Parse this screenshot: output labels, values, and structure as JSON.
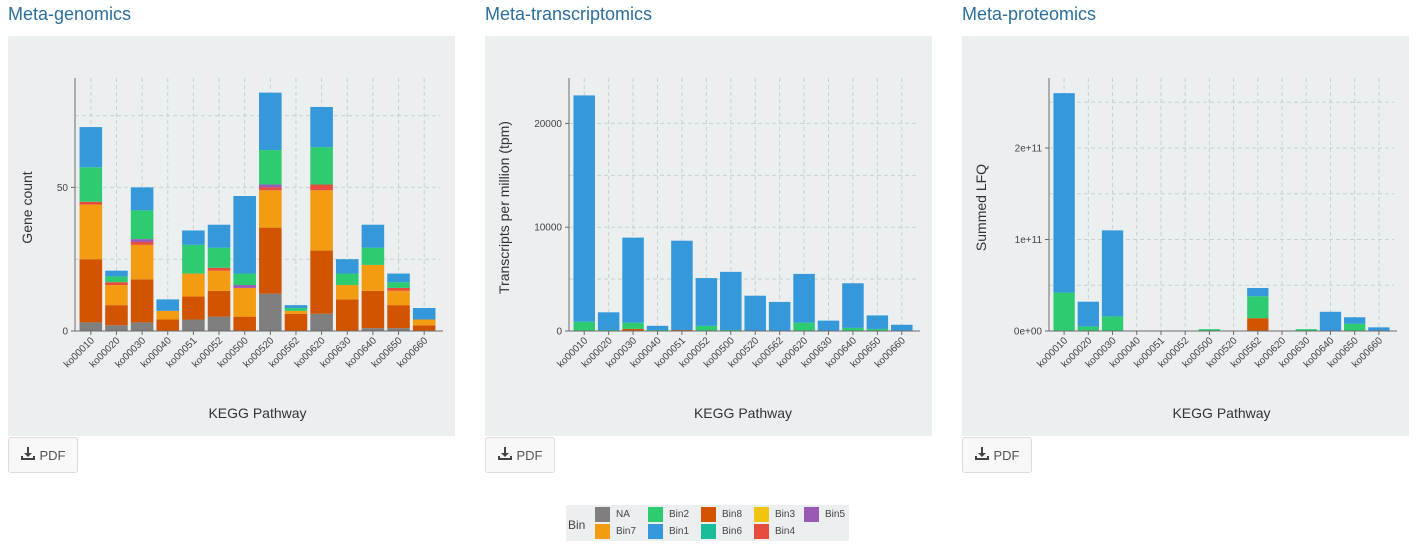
{
  "panels": [
    {
      "title": "Meta-genomics",
      "pdf_label": "PDF"
    },
    {
      "title": "Meta-transcriptomics",
      "pdf_label": "PDF"
    },
    {
      "title": "Meta-proteomics",
      "pdf_label": "PDF"
    }
  ],
  "legend": {
    "title": "Bin",
    "items": [
      {
        "name": "NA",
        "color": "#7f7f7f"
      },
      {
        "name": "Bin7",
        "color": "#f39c12"
      },
      {
        "name": "Bin2",
        "color": "#2ecc71"
      },
      {
        "name": "Bin1",
        "color": "#3498db"
      },
      {
        "name": "Bin8",
        "color": "#d35400"
      },
      {
        "name": "Bin6",
        "color": "#1abc9c"
      },
      {
        "name": "Bin3",
        "color": "#f1c40f"
      },
      {
        "name": "Bin4",
        "color": "#e74c3c"
      },
      {
        "name": "Bin5",
        "color": "#9b59b6"
      }
    ]
  },
  "chart_data": [
    {
      "type": "bar",
      "stacked": true,
      "title": "",
      "xlabel": "KEGG Pathway",
      "ylabel": "Gene count",
      "ylim": [
        0,
        86
      ],
      "yticks": [
        0,
        50
      ],
      "ytick_labels": [
        "0",
        "50"
      ],
      "grid": true,
      "categories": [
        "ko00010",
        "ko00020",
        "ko00030",
        "ko00040",
        "ko00051",
        "ko00052",
        "ko00500",
        "ko00520",
        "ko00562",
        "ko00620",
        "ko00630",
        "ko00640",
        "ko00650",
        "ko00660"
      ],
      "series": [
        {
          "name": "NA",
          "color": "#7f7f7f",
          "values": [
            3,
            2,
            3,
            0,
            4,
            5,
            0,
            13,
            0,
            6,
            0,
            1,
            1,
            0
          ]
        },
        {
          "name": "Bin8",
          "color": "#d35400",
          "values": [
            22,
            7,
            15,
            4,
            8,
            9,
            5,
            23,
            6,
            22,
            11,
            13,
            8,
            2
          ]
        },
        {
          "name": "Bin7",
          "color": "#f39c12",
          "values": [
            19,
            7,
            12,
            3,
            8,
            7,
            10,
            13,
            1,
            21,
            5,
            9,
            5,
            2
          ]
        },
        {
          "name": "Bin4",
          "color": "#e74c3c",
          "values": [
            1,
            1,
            1,
            0,
            0,
            1,
            0,
            1,
            0,
            2,
            0,
            0,
            1,
            0
          ]
        },
        {
          "name": "Bin5",
          "color": "#9b59b6",
          "values": [
            0,
            0,
            1,
            0,
            0,
            0,
            1,
            1,
            0,
            0,
            0,
            0,
            0,
            0
          ]
        },
        {
          "name": "Bin2",
          "color": "#2ecc71",
          "values": [
            12,
            2,
            10,
            0,
            10,
            7,
            4,
            12,
            1,
            13,
            4,
            6,
            2,
            0
          ]
        },
        {
          "name": "Bin1",
          "color": "#3498db",
          "values": [
            14,
            2,
            8,
            4,
            5,
            8,
            27,
            20,
            1,
            14,
            5,
            8,
            3,
            4
          ]
        }
      ]
    },
    {
      "type": "bar",
      "stacked": true,
      "title": "",
      "xlabel": "KEGG Pathway",
      "ylabel": "Transcripts per million (tpm)",
      "ylim": [
        0,
        23800
      ],
      "yticks": [
        0,
        10000,
        20000
      ],
      "ytick_labels": [
        "0",
        "10000",
        "20000"
      ],
      "grid": true,
      "categories": [
        "ko00010",
        "ko00020",
        "ko00030",
        "ko00040",
        "ko00051",
        "ko00052",
        "ko00500",
        "ko00520",
        "ko00562",
        "ko00620",
        "ko00630",
        "ko00640",
        "ko00650",
        "ko00660"
      ],
      "series": [
        {
          "name": "Bin8",
          "color": "#d35400",
          "values": [
            0,
            0,
            200,
            0,
            100,
            0,
            0,
            0,
            0,
            0,
            0,
            0,
            0,
            0
          ]
        },
        {
          "name": "Bin2",
          "color": "#2ecc71",
          "values": [
            900,
            100,
            600,
            100,
            0,
            500,
            100,
            0,
            0,
            800,
            0,
            300,
            200,
            0
          ]
        },
        {
          "name": "Bin1",
          "color": "#3498db",
          "values": [
            21800,
            1700,
            8200,
            400,
            8600,
            4600,
            5600,
            3400,
            2800,
            4700,
            1000,
            4300,
            1300,
            600
          ]
        }
      ]
    },
    {
      "type": "bar",
      "stacked": true,
      "title": "",
      "xlabel": "KEGG Pathway",
      "ylabel": "Summed LFQ",
      "ylim": [
        0,
        270000000000
      ],
      "yticks": [
        0,
        100000000000,
        200000000000
      ],
      "ytick_labels": [
        "0e+00",
        "1e+11",
        "2e+11"
      ],
      "grid": true,
      "categories": [
        "ko00010",
        "ko00020",
        "ko00030",
        "ko00040",
        "ko00051",
        "ko00052",
        "ko00500",
        "ko00520",
        "ko00562",
        "ko00620",
        "ko00630",
        "ko00640",
        "ko00650",
        "ko00660"
      ],
      "series": [
        {
          "name": "Bin8",
          "color": "#d35400",
          "values": [
            0,
            0,
            0,
            0,
            0,
            0,
            0,
            0,
            14000000000,
            0,
            0,
            0,
            0,
            0
          ]
        },
        {
          "name": "Bin2",
          "color": "#2ecc71",
          "values": [
            42000000000,
            5000000000,
            16000000000,
            0,
            0,
            0,
            2000000000,
            0,
            24000000000,
            0,
            2000000000,
            0,
            8000000000,
            0
          ]
        },
        {
          "name": "Bin1",
          "color": "#3498db",
          "values": [
            218000000000,
            27000000000,
            94000000000,
            0,
            0,
            0,
            0,
            0,
            9000000000,
            0,
            0,
            21000000000,
            7000000000,
            4000000000
          ]
        }
      ]
    }
  ]
}
